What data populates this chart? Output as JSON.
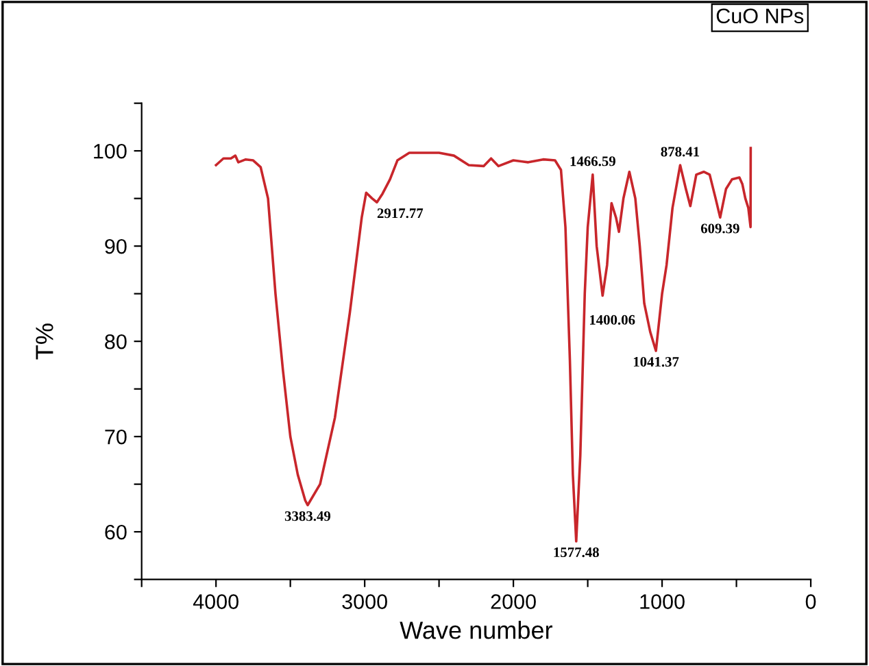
{
  "chart_data": {
    "type": "line",
    "xlabel": "Wave number",
    "ylabel": "T%",
    "x": [
      4000,
      3950,
      3900,
      3870,
      3850,
      3800,
      3750,
      3700,
      3650,
      3600,
      3550,
      3500,
      3450,
      3400,
      3383.49,
      3300,
      3200,
      3100,
      3020,
      2990,
      2950,
      2917.77,
      2880,
      2830,
      2780,
      2700,
      2600,
      2500,
      2400,
      2300,
      2200,
      2150,
      2100,
      2000,
      1900,
      1800,
      1720,
      1680,
      1650,
      1620,
      1600,
      1577.48,
      1550,
      1520,
      1500,
      1466.59,
      1440,
      1400.06,
      1370,
      1340,
      1310,
      1290,
      1260,
      1220,
      1180,
      1150,
      1120,
      1080,
      1041.37,
      1000,
      970,
      930,
      878.41,
      840,
      810,
      770,
      720,
      680,
      640,
      609.39,
      570,
      530,
      480,
      460,
      440,
      420,
      405,
      404
    ],
    "series": [
      {
        "color": "#c8262b",
        "values": [
          98.5,
          99.2,
          99.2,
          99.5,
          98.8,
          99.1,
          99,
          98.3,
          95,
          85,
          77,
          70,
          66,
          63.3,
          62.8,
          65,
          72,
          83,
          93,
          95.6,
          95,
          94.6,
          95.5,
          97,
          99,
          99.8,
          99.8,
          99.8,
          99.5,
          98.5,
          98.4,
          99.2,
          98.4,
          99,
          98.8,
          99.1,
          99,
          98,
          92,
          78,
          66,
          59,
          68,
          85,
          92,
          97.5,
          90,
          84.8,
          88,
          94.5,
          93,
          91.5,
          95,
          97.8,
          95,
          90,
          84,
          81,
          79,
          85,
          88,
          94,
          98.5,
          96,
          94.2,
          97.5,
          97.8,
          97.5,
          95,
          93,
          96,
          97,
          97.2,
          96.5,
          95,
          94,
          92,
          100.3
        ]
      }
    ],
    "xlim": [
      4500,
      0
    ],
    "ylim": [
      55,
      105
    ],
    "xticks": [
      {
        "value": 4500,
        "label": null
      },
      4000,
      {
        "value": 3500,
        "label": null
      },
      3000,
      {
        "value": 2500,
        "label": null
      },
      2000,
      {
        "value": 1500,
        "label": null
      },
      1000,
      {
        "value": 500,
        "label": null
      },
      0
    ],
    "yticks": [
      {
        "value": 55,
        "label": null
      },
      60,
      {
        "value": 65,
        "label": null
      },
      70,
      {
        "value": 75,
        "label": null
      },
      80,
      {
        "value": 85,
        "label": null
      },
      90,
      {
        "value": 95,
        "label": null
      },
      100,
      {
        "value": 105,
        "label": null
      }
    ],
    "grid": false,
    "legend": false,
    "annotations": [
      "CuO NPs",
      {
        "text": "3383.49",
        "x": 3383.49,
        "y": 62.8
      },
      {
        "text": "2917.77",
        "x": 2917.77,
        "y": 94.6
      },
      {
        "text": "1577.48",
        "x": 1577.48,
        "y": 59
      },
      {
        "text": "1466.59",
        "x": 1466.59,
        "y": 97.5
      },
      {
        "text": "1400.06",
        "x": 1400.06,
        "y": 84.8
      },
      {
        "text": "1041.37",
        "x": 1041.37,
        "y": 79
      },
      {
        "text": "878.41",
        "x": 878.41,
        "y": 98.5
      },
      {
        "text": "609.39",
        "x": 609.39,
        "y": 93
      }
    ]
  }
}
